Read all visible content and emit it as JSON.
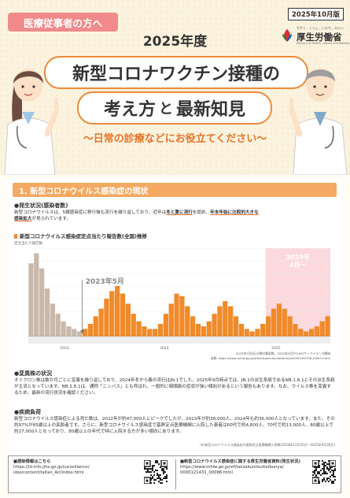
{
  "header": {
    "tag": "医療従事者の方へ",
    "edition": "2025年10月版",
    "ministry_sub": "かぞく、くらし、いのち、みらい",
    "ministry": "厚生労働省",
    "ministry_en": "Ministry of Health, Labour and Welfare",
    "year_line": "2025年度",
    "title_line1": "新型コロナワクチン接種の",
    "title_line2a": "考え方",
    "title_line2b": "と",
    "title_line2c": "最新知見",
    "subtitle": "～日常の診療などにお役立てください～"
  },
  "section1": {
    "bar": "1. 新型コロナウイルス感染症の現状",
    "h_outbreak": "●発生状況(感染者数)",
    "p_outbreak_1": "新型コロナウイルスは、5類感染症に移行後も流行を繰り返しており、近年は",
    "p_outbreak_u1": "冬と夏に流行",
    "p_outbreak_2": "を認め、",
    "p_outbreak_u2": "年末年始に比較的大きな",
    "p_outbreak_u3": "感染拡大",
    "p_outbreak_3": "が見られています。",
    "chart_heading": "新型コロナウイルス感染症定点当たり報告数(全国)推移",
    "h_variant": "●変異株の状況",
    "p_variant": "オミクロン株は数か月ごとに変異を繰り返しており、2024年冬から春の流行はJN.1でした。2025年9月時点では、JN.1の派生系統であるNB.1.8.1とその派生系統が主流となっています。NB.1.8.1は、通称「ニンバス」とも呼ばれ、一般的に咽頭痛の症状が強い傾向があるという報告もあります。なお、ウイルス株を変異するため、最新の流行状況を確認ください。",
    "h_burden": "●疾病負荷",
    "p_burden": "新型コロナウイルス感染症による死亡数は、2022年が約47,000人とピークでしたが、2023年が約38,000人、2024年も約36,000人となっています。また、その約97%が65歳以上の高齢者です。さらに、新型コロナウイルス感染症で基幹定点医療機関に入院した患者は60代で約4,800人、70代で約13,000人、80歳以上で約27,000人となっており、80歳以上の年代で特に入院する方が多い傾向にあります。",
    "note_burden": "(※)新型コロナウイルス感染症の基幹定点医療機関入院数(2024年12月30日～2025年9月28日)"
  },
  "chart_data": {
    "type": "area",
    "title": "新型コロナウイルス感染症定点当たり報告数(全国)推移",
    "ylabel": "定点当たり報告数",
    "ylim": [
      0,
      35
    ],
    "x_year_labels": [
      "2023",
      "2024",
      "2025"
    ],
    "annotation_may": "2023年5月",
    "highlight_label_1": "2025年",
    "highlight_label_2": "4月～",
    "source_note_1": "2023年5月8日以降の報告数。2025年4月からARIサーベイランス開始",
    "source_note_2": "出典: https://www.mhlw.go.jp/stf/seisakunitsuite/bunya/0000164708_00001.html",
    "series": [
      {
        "values": [
          29,
          33,
          27,
          19,
          13,
          9,
          6,
          4,
          3,
          2,
          3,
          5,
          8,
          11,
          15,
          18,
          20,
          17,
          13,
          9,
          6,
          4,
          3,
          3,
          5,
          9,
          13,
          17,
          16,
          12,
          8,
          5,
          4,
          6,
          9,
          12,
          14,
          12,
          8,
          5,
          3,
          2,
          3,
          5,
          8,
          11,
          13,
          11,
          8,
          5,
          3,
          2,
          3,
          4,
          6,
          8
        ]
      }
    ],
    "colors": {
      "pre_may": "#c9b8ab",
      "main": "#f08a2a",
      "highlight": "#fbd9dc"
    }
  },
  "footer": {
    "left_label": "■感染情報はこちら",
    "left_url_1": "https://id-info.jihs.go.jp/surveillance/",
    "left_url_2": "idss/content/taitan_Ari/index.html",
    "right_label": "■新型コロナウイルス感染症に関する厚生労働省資料(発生状況)",
    "right_url_1": "https://www.mhlw.go.jp/stf/seisakunitsuite/bunya/",
    "right_url_2": "0000121431_00086.html"
  }
}
